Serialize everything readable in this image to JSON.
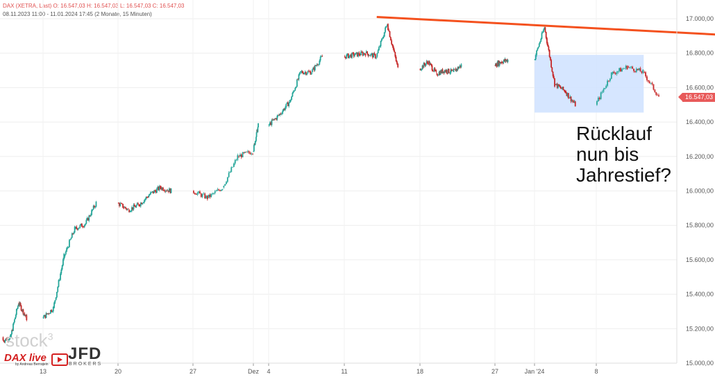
{
  "header": {
    "line1": "DAX (XETRA, Last)   O: 16.547,03   H: 16.547,03   L: 16.547,03   C: 16.547,03",
    "line2": "08.11.2023 11:00 - 11.01.2024 17:45    (2 Monate, 15 Minuten)"
  },
  "price_tag": "16.547,03",
  "annotation": {
    "line1": "Rücklauf",
    "line2": "nun bis",
    "line3": "Jahrestief?"
  },
  "logos": {
    "stock": "stock",
    "stock_sup": "3",
    "dax": "DAX live",
    "dax_sub": "by Andreas Bernstein",
    "jfd": "JFD",
    "brokers": "BROKERS"
  },
  "colors": {
    "up": "#26a69a",
    "down": "#c62828",
    "trendline": "#f4511e",
    "zone": "#cfe2ff",
    "price_tag": "#e85a5a"
  },
  "chart_data": {
    "type": "line",
    "title": "DAX (XETRA, Last)",
    "ylim": [
      15000,
      17100
    ],
    "grid": true,
    "y_ticks": [
      "17.000,00",
      "16.800,00",
      "16.600,00",
      "16.400,00",
      "16.200,00",
      "16.000,00",
      "15.800,00",
      "15.600,00",
      "15.400,00",
      "15.200,00",
      "15.000,00"
    ],
    "y_tick_values": [
      17000,
      16800,
      16600,
      16400,
      16200,
      16000,
      15800,
      15600,
      15400,
      15200,
      15000
    ],
    "x_ticks": [
      "13",
      "20",
      "27",
      "Dez",
      "4",
      "11",
      "18",
      "27",
      "Jan '24",
      "8"
    ],
    "x": [
      "2023-11-08",
      "2023-11-09",
      "2023-11-10",
      "2023-11-13",
      "2023-11-14",
      "2023-11-15",
      "2023-11-16",
      "2023-11-17",
      "2023-11-20",
      "2023-11-21",
      "2023-11-22",
      "2023-11-23",
      "2023-11-24",
      "2023-11-27",
      "2023-11-28",
      "2023-11-29",
      "2023-11-30",
      "2023-12-01",
      "2023-12-04",
      "2023-12-05",
      "2023-12-06",
      "2023-12-07",
      "2023-12-08",
      "2023-12-11",
      "2023-12-12",
      "2023-12-13",
      "2023-12-14",
      "2023-12-15",
      "2023-12-18",
      "2023-12-19",
      "2023-12-20",
      "2023-12-21",
      "2023-12-22",
      "2023-12-27",
      "2023-12-28",
      "2024-01-02",
      "2024-01-03",
      "2024-01-04",
      "2024-01-05",
      "2024-01-08",
      "2024-01-09",
      "2024-01-10",
      "2024-01-11"
    ],
    "series": [
      {
        "values": [
          15150,
          15350,
          15260,
          15320,
          15620,
          15780,
          15810,
          15930,
          15890,
          15920,
          15980,
          16020,
          16000,
          15960,
          16020,
          16200,
          16230,
          16380,
          16440,
          16520,
          16690,
          16690,
          16780,
          16790,
          16800,
          16780,
          16970,
          16710,
          16750,
          16680,
          16700,
          16690,
          16730,
          16750,
          16760,
          16950,
          16620,
          16580,
          16500,
          16680,
          16720,
          16690,
          16547
        ]
      }
    ],
    "trendline": {
      "points": [
        [
          "2023-12-14",
          17010
        ],
        [
          "2024-01-11",
          16930
        ]
      ]
    },
    "zone": {
      "x": [
        "2024-01-02",
        "2024-01-11"
      ],
      "y": [
        16455,
        16790
      ]
    },
    "last_value": 16547.03
  }
}
